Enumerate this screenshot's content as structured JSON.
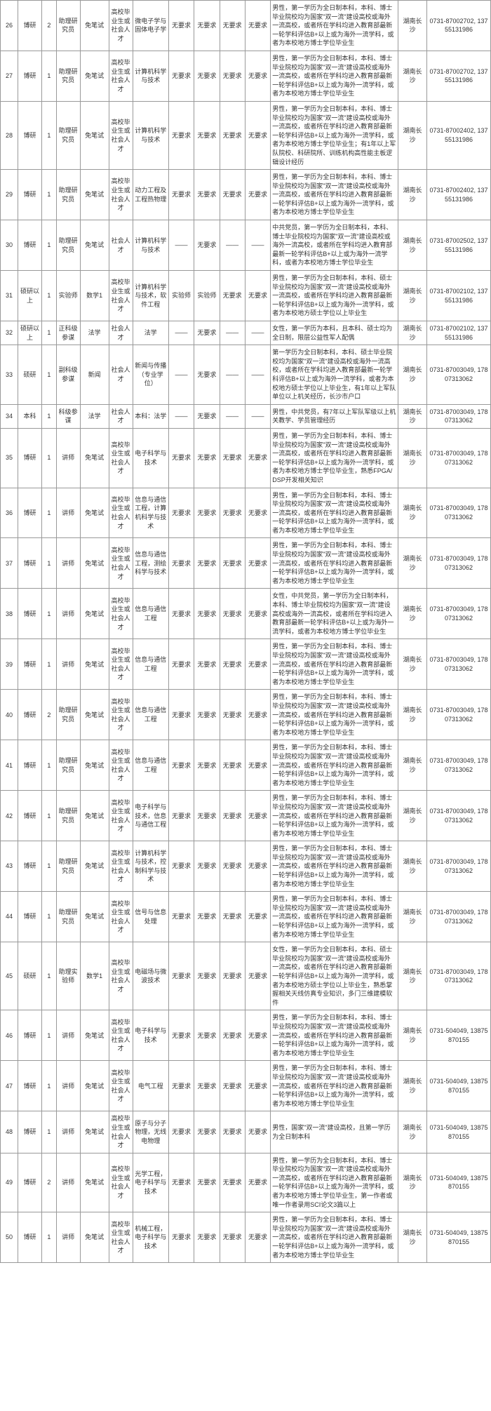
{
  "rows": [
    {
      "idx": "26",
      "edu": "博研",
      "num": "2",
      "pos": "助理研究员",
      "dept": "免笔试",
      "cat": "高校毕业生或社会人才",
      "major": "微电子学与固体电子学",
      "r1": "无要求",
      "r2": "无要求",
      "r3": "无要求",
      "r4": "无要求",
      "remark": "男性，第一学历为全日制本科，本科、博士毕业院校均为国家\"双一流\"建设高校或海外一流高校，或者所在学科均进入教育部最新一轮学科评估B+以上或为海外一流学科，或者为本校地方博士学位毕业生",
      "loc": "湖南长沙",
      "phone": "0731-87002702, 13755131986"
    },
    {
      "idx": "27",
      "edu": "博研",
      "num": "1",
      "pos": "助理研究员",
      "dept": "免笔试",
      "cat": "高校毕业生或社会人才",
      "major": "计算机科学与技术",
      "r1": "无要求",
      "r2": "无要求",
      "r3": "无要求",
      "r4": "无要求",
      "remark": "男性，第一学历为全日制本科，本科、博士毕业院校均为国家\"双一流\"建设高校或海外一流高校，或者所在学科均进入教育部最新一轮学科评估B+以上或为海外一流学科，或者为本校地方博士学位毕业生",
      "loc": "湖南长沙",
      "phone": "0731-87002702, 13755131986"
    },
    {
      "idx": "28",
      "edu": "博研",
      "num": "1",
      "pos": "助理研究员",
      "dept": "免笔试",
      "cat": "高校毕业生或社会人才",
      "major": "计算机科学与技术",
      "r1": "无要求",
      "r2": "无要求",
      "r3": "无要求",
      "r4": "无要求",
      "remark": "男性，第一学历为全日制本科，本科、博士毕业院校均为国家\"双一流\"建设高校或海外一流高校，或者所在学科均进入教育部最新一轮学科评估B+以上或为海外一流学科，或者为本校地方博士学位毕业生；有1年以上军队院校、科研院所、训练机构高性能主板逻辑设计经历",
      "loc": "湖南长沙",
      "phone": "0731-87002402, 13755131986"
    },
    {
      "idx": "29",
      "edu": "博研",
      "num": "1",
      "pos": "助理研究员",
      "dept": "免笔试",
      "cat": "高校毕业生或社会人才",
      "major": "动力工程及工程热物理",
      "r1": "无要求",
      "r2": "无要求",
      "r3": "无要求",
      "r4": "无要求",
      "remark": "男性，第一学历为全日制本科，本科、博士毕业院校均为国家\"双一流\"建设高校或海外一流高校，或者所在学科均进入教育部最新一轮学科评估B+以上或为海外一流学科，或者为本校地方博士学位毕业生",
      "loc": "湖南长沙",
      "phone": "0731-87002402, 13755131986"
    },
    {
      "idx": "30",
      "edu": "博研",
      "num": "1",
      "pos": "助理研究员",
      "dept": "免笔试",
      "cat": "社会人才",
      "major": "计算机科学与技术",
      "r1": "——",
      "r2": "无要求",
      "r3": "——",
      "r4": "——",
      "remark": "中共党员，第一学历为全日制本科，本科、博士毕业院校均为国家\"双一流\"建设高校或海外一流高校，或者所在学科均进入教育部最新一轮学科评估B+以上或为海外一流学科，或者为本校地方博士学位毕业生",
      "loc": "湖南长沙",
      "phone": "0731-87002502, 13755131986"
    },
    {
      "idx": "31",
      "edu": "硕研以上",
      "num": "1",
      "pos": "实验师",
      "dept": "数学1",
      "cat": "高校毕业生或社会人才",
      "major": "计算机科学与技术，软件工程",
      "r1": "实验师",
      "r2": "实验师",
      "r3": "无要求",
      "r4": "无要求",
      "remark": "男性，第一学历为全日制本科，本科、硕士毕业院校均为国家\"双一流\"建设高校或海外一流高校，或者所在学科均进入教育部最新一轮学科评估B+以上或为海外一流学科，或者为本校地方硕士学位以上毕业生",
      "loc": "湖南长沙",
      "phone": "0731-87002102, 13755131986"
    },
    {
      "idx": "32",
      "edu": "硕研以上",
      "num": "1",
      "pos": "正科级参谋",
      "dept": "法学",
      "cat": "社会人才",
      "major": "法学",
      "r1": "——",
      "r2": "无要求",
      "r3": "——",
      "r4": "——",
      "remark": "女性，第一学历为本科，且本科、硕士均为全日制，限层公益性军人配偶",
      "loc": "湖南长沙",
      "phone": "0731-87002102, 13755131986"
    },
    {
      "idx": "33",
      "edu": "硕研",
      "num": "1",
      "pos": "副科级参谋",
      "dept": "新闻",
      "cat": "社会人才",
      "major": "新闻与传播（专业学位）",
      "r1": "——",
      "r2": "无要求",
      "r3": "——",
      "r4": "——",
      "remark": "第一学历为全日制本科，本科、硕士毕业院校均为国家\"双一流\"建设高校或海外一流高校，或者所在学科均进入教育部最新一轮学科评估B+以上或为海外一流学科，或者为本校地方硕士学位以上毕业生，有1年以上军队单位以上机关经历，长沙市户口",
      "loc": "湖南长沙",
      "phone": "0731-87003049, 17807313062"
    },
    {
      "idx": "34",
      "edu": "本科",
      "num": "1",
      "pos": "科级参谋",
      "dept": "法学",
      "cat": "社会人才",
      "major": "本科：法学",
      "r1": "——",
      "r2": "无要求",
      "r3": "——",
      "r4": "——",
      "remark": "男性，中共党员，有7年以上军队军级以上机关教学、学员管理经历",
      "loc": "湖南长沙",
      "phone": "0731-87003049, 17807313062"
    },
    {
      "idx": "35",
      "edu": "博研",
      "num": "1",
      "pos": "讲师",
      "dept": "免笔试",
      "cat": "高校毕业生或社会人才",
      "major": "电子科学与技术",
      "r1": "无要求",
      "r2": "无要求",
      "r3": "无要求",
      "r4": "无要求",
      "remark": "男性，第一学历为全日制本科，本科、博士毕业院校均为国家\"双一流\"建设高校或海外一流高校，或者所在学科均进入教育部最新一轮学科评估B+以上或为海外一流学科，或者为本校地方博士学位毕业生，熟悉FPGA/DSP开发相关知识",
      "loc": "湖南长沙",
      "phone": "0731-87003049, 17807313062"
    },
    {
      "idx": "36",
      "edu": "博研",
      "num": "1",
      "pos": "讲师",
      "dept": "免笔试",
      "cat": "高校毕业生或社会人才",
      "major": "信息与通信工程，计算机科学与技术",
      "r1": "无要求",
      "r2": "无要求",
      "r3": "无要求",
      "r4": "无要求",
      "remark": "男性，第一学历为全日制本科，本科、博士毕业院校均为国家\"双一流\"建设高校或海外一流高校，或者所在学科均进入教育部最新一轮学科评估B+以上或为海外一流学科，或者为本校地方博士学位毕业生",
      "loc": "湖南长沙",
      "phone": "0731-87003049, 17807313062"
    },
    {
      "idx": "37",
      "edu": "博研",
      "num": "1",
      "pos": "讲师",
      "dept": "免笔试",
      "cat": "高校毕业生或社会人才",
      "major": "信息与通信工程，测绘科学与技术",
      "r1": "无要求",
      "r2": "无要求",
      "r3": "无要求",
      "r4": "无要求",
      "remark": "男性，第一学历为全日制本科，本科、博士毕业院校均为国家\"双一流\"建设高校或海外一流高校，或者所在学科均进入教育部最新一轮学科评估B+以上或为海外一流学科，或者为本校地方博士学位毕业生",
      "loc": "湖南长沙",
      "phone": "0731-87003049, 17807313062"
    },
    {
      "idx": "38",
      "edu": "博研",
      "num": "1",
      "pos": "讲师",
      "dept": "免笔试",
      "cat": "高校毕业生或社会人才",
      "major": "信息与通信工程",
      "r1": "无要求",
      "r2": "无要求",
      "r3": "无要求",
      "r4": "无要求",
      "remark": "女性，中共党员，第一学历为全日制本科，本科、博士毕业院校均为国家\"双一流\"建设高校或海外一流高校，或者所在学科均进入教育部最新一轮学科评估B+以上或为海外一流学科，或者为本校地方博士学位毕业生",
      "loc": "湖南长沙",
      "phone": "0731-87003049, 17807313062"
    },
    {
      "idx": "39",
      "edu": "博研",
      "num": "1",
      "pos": "讲师",
      "dept": "免笔试",
      "cat": "高校毕业生或社会人才",
      "major": "信息与通信工程",
      "r1": "无要求",
      "r2": "无要求",
      "r3": "无要求",
      "r4": "无要求",
      "remark": "男性，第一学历为全日制本科，本科、博士毕业院校均为国家\"双一流\"建设高校或海外一流高校，或者所在学科均进入教育部最新一轮学科评估B+以上或为海外一流学科，或者为本校地方博士学位毕业生",
      "loc": "湖南长沙",
      "phone": "0731-87003049, 17807313062"
    },
    {
      "idx": "40",
      "edu": "博研",
      "num": "2",
      "pos": "助理研究员",
      "dept": "免笔试",
      "cat": "高校毕业生或社会人才",
      "major": "信息与通信工程",
      "r1": "无要求",
      "r2": "无要求",
      "r3": "无要求",
      "r4": "无要求",
      "remark": "男性，第一学历为全日制本科，本科、博士毕业院校均为国家\"双一流\"建设高校或海外一流高校，或者所在学科均进入教育部最新一轮学科评估B+以上或为海外一流学科，或者为本校地方博士学位毕业生",
      "loc": "湖南长沙",
      "phone": "0731-87003049, 17807313062"
    },
    {
      "idx": "41",
      "edu": "博研",
      "num": "1",
      "pos": "助理研究员",
      "dept": "免笔试",
      "cat": "高校毕业生或社会人才",
      "major": "信息与通信工程",
      "r1": "无要求",
      "r2": "无要求",
      "r3": "无要求",
      "r4": "无要求",
      "remark": "男性，第一学历为全日制本科，本科、博士毕业院校均为国家\"双一流\"建设高校或海外一流高校，或者所在学科均进入教育部最新一轮学科评估B+以上或为海外一流学科，或者为本校地方博士学位毕业生",
      "loc": "湖南长沙",
      "phone": "0731-87003049, 17807313062"
    },
    {
      "idx": "42",
      "edu": "博研",
      "num": "1",
      "pos": "助理研究员",
      "dept": "免笔试",
      "cat": "高校毕业生或社会人才",
      "major": "电子科学与技术，信息与通信工程",
      "r1": "无要求",
      "r2": "无要求",
      "r3": "无要求",
      "r4": "无要求",
      "remark": "男性，第一学历为全日制本科，本科、博士毕业院校均为国家\"双一流\"建设高校或海外一流高校，或者所在学科均进入教育部最新一轮学科评估B+以上或为海外一流学科，或者为本校地方博士学位毕业生",
      "loc": "湖南长沙",
      "phone": "0731-87003049, 17807313062"
    },
    {
      "idx": "43",
      "edu": "博研",
      "num": "1",
      "pos": "助理研究员",
      "dept": "免笔试",
      "cat": "高校毕业生或社会人才",
      "major": "计算机科学与技术，控制科学与技术",
      "r1": "无要求",
      "r2": "无要求",
      "r3": "无要求",
      "r4": "无要求",
      "remark": "男性，第一学历为全日制本科，本科、博士毕业院校均为国家\"双一流\"建设高校或海外一流高校，或者所在学科均进入教育部最新一轮学科评估B+以上或为海外一流学科，或者为本校地方博士学位毕业生",
      "loc": "湖南长沙",
      "phone": "0731-87003049, 17807313062"
    },
    {
      "idx": "44",
      "edu": "博研",
      "num": "1",
      "pos": "助理研究员",
      "dept": "免笔试",
      "cat": "高校毕业生或社会人才",
      "major": "信号与信息处理",
      "r1": "无要求",
      "r2": "无要求",
      "r3": "无要求",
      "r4": "无要求",
      "remark": "男性，第一学历为全日制本科，本科、博士毕业院校均为国家\"双一流\"建设高校或海外一流高校，或者所在学科均进入教育部最新一轮学科评估B+以上或为海外一流学科，或者为本校地方博士学位毕业生",
      "loc": "湖南长沙",
      "phone": "0731-87003049, 17807313062"
    },
    {
      "idx": "45",
      "edu": "硕研",
      "num": "1",
      "pos": "助理实验师",
      "dept": "数学1",
      "cat": "高校毕业生或社会人才",
      "major": "电磁场与微波技术",
      "r1": "无要求",
      "r2": "无要求",
      "r3": "无要求",
      "r4": "无要求",
      "remark": "女性，第一学历为全日制本科，本科、硕士毕业院校均为国家\"双一流\"建设高校或海外一流高校，或者所在学科均进入教育部最新一轮学科评估B+以上或为海外一流学科，或者为本校地方硕士学位以上毕业生，熟悉掌握相关天线仿真专业知识，多门三维建模软件",
      "loc": "湖南长沙",
      "phone": "0731-87003049, 17807313062"
    },
    {
      "idx": "46",
      "edu": "博研",
      "num": "1",
      "pos": "讲师",
      "dept": "免笔试",
      "cat": "高校毕业生或社会人才",
      "major": "电子科学与技术",
      "r1": "无要求",
      "r2": "无要求",
      "r3": "无要求",
      "r4": "无要求",
      "remark": "男性，第一学历为全日制本科，本科、博士毕业院校均为国家\"双一流\"建设高校或海外一流高校，或者所在学科均进入教育部最新一轮学科评估B+以上或为海外一流学科，或者为本校地方博士学位毕业生",
      "loc": "湖南长沙",
      "phone": "0731-504049, 13875870155"
    },
    {
      "idx": "47",
      "edu": "博研",
      "num": "1",
      "pos": "讲师",
      "dept": "免笔试",
      "cat": "高校毕业生或社会人才",
      "major": "电气工程",
      "r1": "无要求",
      "r2": "无要求",
      "r3": "无要求",
      "r4": "无要求",
      "remark": "男性，第一学历为全日制本科，本科、博士毕业院校均为国家\"双一流\"建设高校或海外一流高校，或者所在学科均进入教育部最新一轮学科评估B+以上或为海外一流学科，或者为本校地方博士学位毕业生",
      "loc": "湖南长沙",
      "phone": "0731-504049, 13875870155"
    },
    {
      "idx": "48",
      "edu": "博研",
      "num": "1",
      "pos": "讲师",
      "dept": "免笔试",
      "cat": "高校毕业生或社会人才",
      "major": "原子与分子物理，无线电物理",
      "r1": "无要求",
      "r2": "无要求",
      "r3": "无要求",
      "r4": "无要求",
      "remark": "男性，国家\"双一流\"建设高校，且第一学历为全日制本科",
      "loc": "湖南长沙",
      "phone": "0731-504049, 13875870155"
    },
    {
      "idx": "49",
      "edu": "博研",
      "num": "2",
      "pos": "讲师",
      "dept": "免笔试",
      "cat": "高校毕业生或社会人才",
      "major": "光学工程，电子科学与技术",
      "r1": "无要求",
      "r2": "无要求",
      "r3": "无要求",
      "r4": "无要求",
      "remark": "男性，第一学历为全日制本科，本科、博士毕业院校均为国家\"双一流\"建设高校或海外一流高校，或者所在学科均进入教育部最新一轮学科评估B+以上或为海外一流学科，或者为本校地方博士学位毕业生，第一作者或唯一作者录用SCI论文3篇以上",
      "loc": "湖南长沙",
      "phone": "0731-504049, 13875870155"
    },
    {
      "idx": "50",
      "edu": "博研",
      "num": "1",
      "pos": "讲师",
      "dept": "免笔试",
      "cat": "高校毕业生或社会人才",
      "major": "机械工程，电子科学与技术",
      "r1": "无要求",
      "r2": "无要求",
      "r3": "无要求",
      "r4": "无要求",
      "remark": "男性，第一学历为全日制本科，本科、博士毕业院校均为国家\"双一流\"建设高校或海外一流高校，或者所在学科均进入教育部最新一轮学科评估B+以上或为海外一流学科，或者为本校地方博士学位毕业生",
      "loc": "湖南长沙",
      "phone": "0731-504049, 13875870155"
    }
  ]
}
